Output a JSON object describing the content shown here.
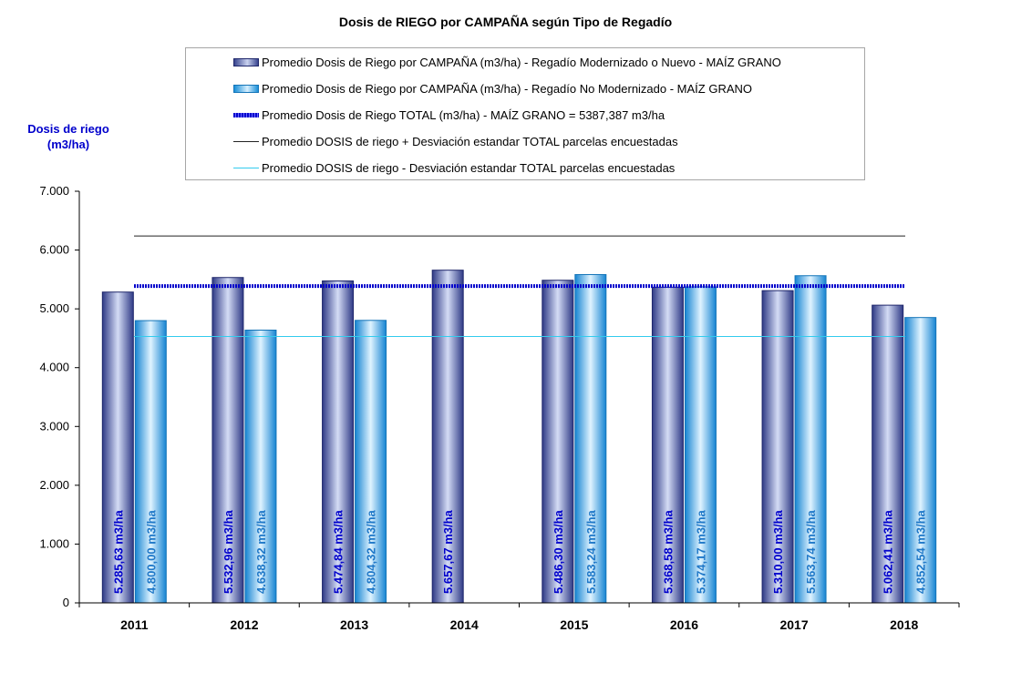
{
  "chart_data": {
    "type": "bar",
    "title": "Dosis de RIEGO por CAMPAÑA según Tipo de Regadío",
    "ylabel_lines": [
      "Dosis de riego",
      "(m3/ha)"
    ],
    "xlabel": "",
    "ylim": [
      0,
      7000
    ],
    "yticks": [
      0,
      1000,
      2000,
      3000,
      4000,
      5000,
      6000,
      7000
    ],
    "ytick_labels": [
      "0",
      "1.000",
      "2.000",
      "3.000",
      "4.000",
      "5.000",
      "6.000",
      "7.000"
    ],
    "categories": [
      "2011",
      "2012",
      "2013",
      "2014",
      "2015",
      "2016",
      "2017",
      "2018"
    ],
    "series": [
      {
        "name": "Promedio Dosis de Riego por CAMPAÑA (m3/ha) - Regadío Modernizado o Nuevo - MAÍZ GRANO",
        "values": [
          5285.63,
          5532.96,
          5474.84,
          5657.67,
          5486.3,
          5368.58,
          5310.0,
          5062.41
        ],
        "labels": [
          "5.285,63 m3/ha",
          "5.532,96 m3/ha",
          "5.474,84 m3/ha",
          "5.657,67 m3/ha",
          "5.486,30 m3/ha",
          "5.368,58 m3/ha",
          "5.310,00 m3/ha",
          "5.062,41 m3/ha"
        ],
        "color": "#39458f",
        "label_color": "#0000cc"
      },
      {
        "name": "Promedio Dosis de Riego por CAMPAÑA (m3/ha) - Regadío No Modernizado - MAÍZ GRANO",
        "values": [
          4800.0,
          4638.32,
          4804.32,
          null,
          5583.24,
          5374.17,
          5563.74,
          4852.54
        ],
        "labels": [
          "4.800,00 m3/ha",
          "4.638,32 m3/ha",
          "4.804,32 m3/ha",
          "",
          "5.583,24 m3/ha",
          "5.374,17 m3/ha",
          "5.563,74 m3/ha",
          "4.852,54 m3/ha"
        ],
        "color": "#1a8fd8",
        "label_color": "#1f78c8"
      }
    ],
    "reference_lines": [
      {
        "name": "Promedio Dosis de Riego TOTAL (m3/ha) - MAÍZ GRANO = 5387,387 m3/ha",
        "value": 5387.387,
        "color": "#0000cc",
        "style": "dotted-thick"
      },
      {
        "name": "Promedio DOSIS de riego + Desviación estandar TOTAL parcelas encuestadas",
        "value": 6240,
        "color": "#222222",
        "style": "solid-thin"
      },
      {
        "name": "Promedio DOSIS de riego - Desviación estandar TOTAL parcelas encuestadas",
        "value": 4530,
        "color": "#33ccee",
        "style": "solid-thin"
      }
    ],
    "legend": {
      "position": "top"
    },
    "grid": false
  }
}
